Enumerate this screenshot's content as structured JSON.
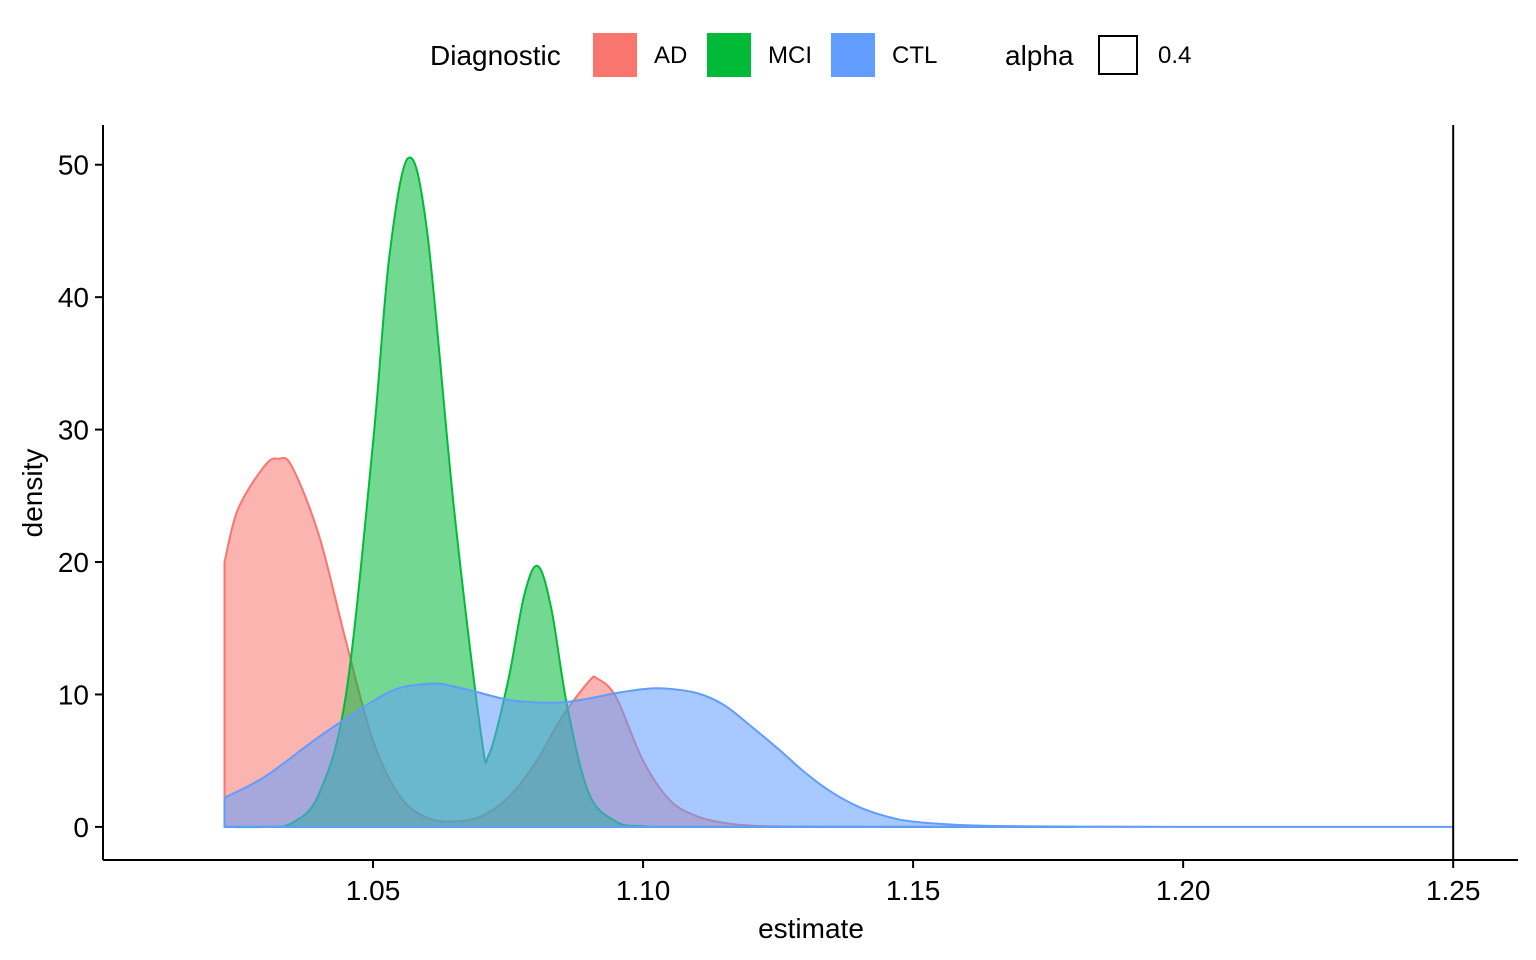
{
  "chart_data": {
    "type": "area",
    "xlabel": "estimate",
    "ylabel": "density",
    "xlim": [
      1.0,
      1.262
    ],
    "ylim": [
      -2.5,
      53
    ],
    "x_ticks": [
      "1.05",
      "1.10",
      "1.15",
      "1.20",
      "1.25"
    ],
    "x_tick_values": [
      1.05,
      1.1,
      1.15,
      1.2,
      1.25
    ],
    "y_ticks": [
      "0",
      "10",
      "20",
      "30",
      "40",
      "50"
    ],
    "y_tick_values": [
      0,
      10,
      20,
      30,
      40,
      50
    ],
    "vline": 1.25,
    "legend": {
      "diagnostic_title": "Diagnostic",
      "alpha_title": "alpha",
      "alpha_value": "0.4",
      "entries": [
        "AD",
        "MCI",
        "CTL"
      ]
    },
    "series": [
      {
        "name": "AD",
        "color": "#F8766D",
        "x": [
          1.0225,
          1.025,
          1.03,
          1.0325,
          1.035,
          1.04,
          1.045,
          1.05,
          1.055,
          1.06,
          1.065,
          1.07,
          1.075,
          1.08,
          1.085,
          1.09,
          1.0915,
          1.095,
          1.1,
          1.105,
          1.11,
          1.115,
          1.12,
          1.13,
          1.15,
          1.18
        ],
        "y": [
          20,
          24,
          27.3,
          27.8,
          27.2,
          22,
          14,
          6.5,
          2.3,
          0.7,
          0.4,
          0.8,
          2.2,
          4.8,
          8.3,
          11,
          11.2,
          9.8,
          5,
          2,
          0.8,
          0.3,
          0.1,
          0.02,
          0,
          0
        ]
      },
      {
        "name": "MCI",
        "color": "#00BA38",
        "x": [
          1.0225,
          1.03,
          1.035,
          1.04,
          1.045,
          1.05,
          1.053,
          1.0565,
          1.06,
          1.065,
          1.07,
          1.0715,
          1.075,
          1.078,
          1.0805,
          1.083,
          1.086,
          1.09,
          1.095,
          1.1,
          1.11,
          1.18
        ],
        "y": [
          0,
          0,
          0.3,
          2.5,
          10,
          29,
          43,
          50.5,
          45,
          24,
          7,
          5.5,
          11,
          17.5,
          19.7,
          16.5,
          9,
          2.5,
          0.4,
          0.05,
          0,
          0
        ]
      },
      {
        "name": "CTL",
        "color": "#619CFF",
        "x": [
          1.0225,
          1.03,
          1.04,
          1.05,
          1.055,
          1.06,
          1.0625,
          1.065,
          1.07,
          1.075,
          1.08,
          1.085,
          1.09,
          1.095,
          1.1,
          1.104,
          1.11,
          1.115,
          1.12,
          1.125,
          1.13,
          1.135,
          1.14,
          1.145,
          1.15,
          1.16,
          1.17,
          1.18,
          1.2,
          1.25
        ],
        "y": [
          2.2,
          3.8,
          6.8,
          9.5,
          10.5,
          10.8,
          10.8,
          10.6,
          10.1,
          9.6,
          9.4,
          9.4,
          9.7,
          10.1,
          10.4,
          10.45,
          10.1,
          9.2,
          7.6,
          5.9,
          4.1,
          2.6,
          1.5,
          0.8,
          0.4,
          0.12,
          0.05,
          0.02,
          0,
          0
        ]
      }
    ]
  }
}
